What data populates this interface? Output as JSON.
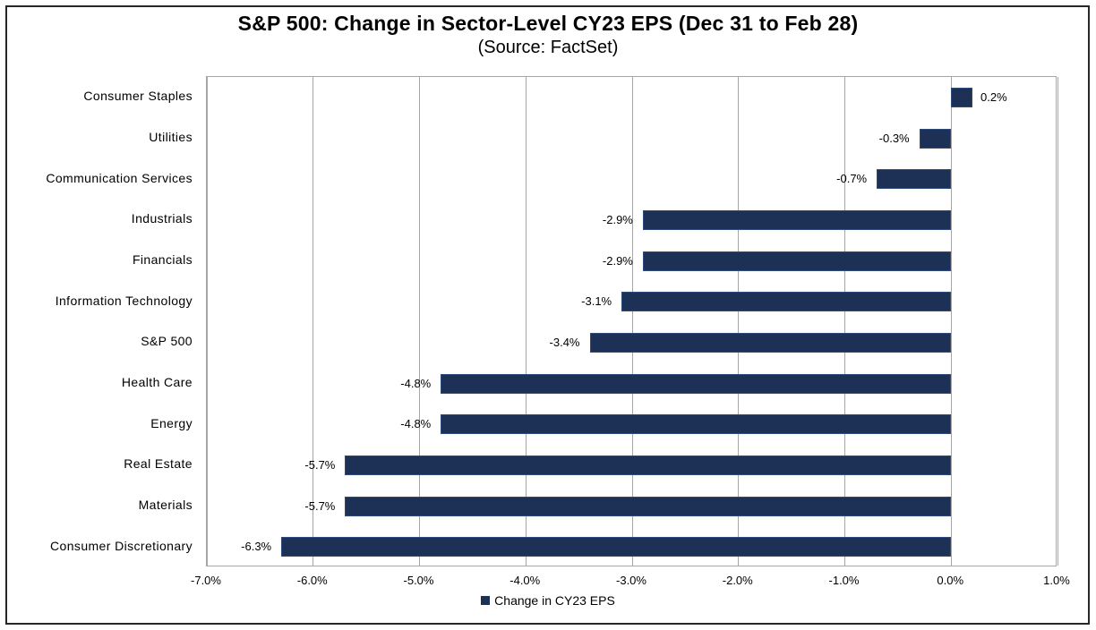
{
  "chart_data": {
    "type": "bar",
    "orientation": "horizontal",
    "title": "S&P 500: Change in Sector-Level CY23 EPS (Dec 31 to Feb 28)",
    "subtitle": "(Source: FactSet)",
    "legend_label": "Change in CY23 EPS",
    "categories": [
      "Consumer Staples",
      "Utilities",
      "Communication Services",
      "Industrials",
      "Financials",
      "Information Technology",
      "S&P 500",
      "Health Care",
      "Energy",
      "Real Estate",
      "Materials",
      "Consumer Discretionary"
    ],
    "values": [
      0.2,
      -0.3,
      -0.7,
      -2.9,
      -2.9,
      -3.1,
      -3.4,
      -4.8,
      -4.8,
      -5.7,
      -5.7,
      -6.3
    ],
    "value_labels": [
      "0.2%",
      "-0.3%",
      "-0.7%",
      "-2.9%",
      "-2.9%",
      "-3.1%",
      "-3.4%",
      "-4.8%",
      "-4.8%",
      "-5.7%",
      "-5.7%",
      "-6.3%"
    ],
    "x_tick_labels": [
      "-7.0%",
      "-6.0%",
      "-5.0%",
      "-4.0%",
      "-3.0%",
      "-2.0%",
      "-1.0%",
      "0.0%",
      "1.0%"
    ],
    "xlim": [
      -7,
      1
    ],
    "grid": "vertical",
    "legend_position": "bottom",
    "colors": {
      "bar_fill": "#1d3156",
      "bar_border": "#2e4b7e",
      "gridline": "#a6a6a6",
      "plot_frame": "#a6a6a6",
      "text": "#000000",
      "background": "#ffffff",
      "outer_border": "#262626"
    }
  }
}
